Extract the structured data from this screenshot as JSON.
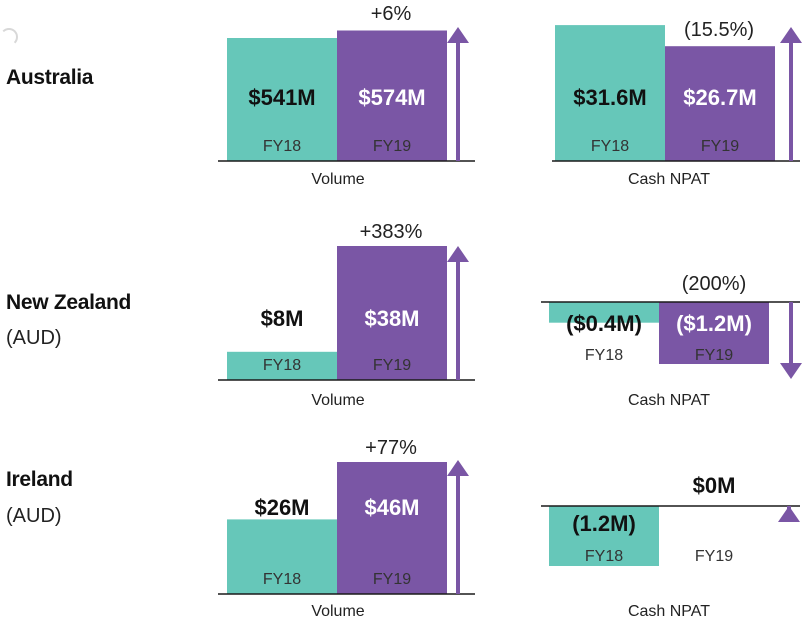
{
  "colors": {
    "fy18": "#66c7b9",
    "fy19": "#7a56a5",
    "arrow": "#7a56a5",
    "axis": "#1a1a1a",
    "white": "#ffffff",
    "dark": "#111111"
  },
  "regions": [
    {
      "name": "Australia",
      "sub": ""
    },
    {
      "name": "New Zealand",
      "sub": "(AUD)"
    },
    {
      "name": "Ireland",
      "sub": "(AUD)"
    }
  ],
  "chart_data": [
    {
      "type": "bar",
      "region": "Australia",
      "metric": "Volume",
      "xlabel": "Volume",
      "unit": "$M",
      "categories": [
        "FY18",
        "FY19"
      ],
      "values": [
        541,
        574
      ],
      "value_labels": [
        "$541M",
        "$574M"
      ],
      "change_label": "+6%",
      "change_direction": "up"
    },
    {
      "type": "bar",
      "region": "Australia",
      "metric": "Cash NPAT",
      "xlabel": "Cash NPAT",
      "unit": "$M",
      "categories": [
        "FY18",
        "FY19"
      ],
      "values": [
        31.6,
        26.7
      ],
      "value_labels": [
        "$31.6M",
        "$26.7M"
      ],
      "change_label": "(15.5%)",
      "change_direction": "up"
    },
    {
      "type": "bar",
      "region": "New Zealand",
      "metric": "Volume",
      "xlabel": "Volume",
      "unit": "$M",
      "categories": [
        "FY18",
        "FY19"
      ],
      "values": [
        8,
        38
      ],
      "value_labels": [
        "$8M",
        "$38M"
      ],
      "change_label": "+383%",
      "change_direction": "up"
    },
    {
      "type": "bar",
      "region": "New Zealand",
      "metric": "Cash NPAT",
      "xlabel": "Cash NPAT",
      "unit": "$M",
      "categories": [
        "FY18",
        "FY19"
      ],
      "values": [
        -0.4,
        -1.2
      ],
      "value_labels": [
        "($0.4M)",
        "($1.2M)"
      ],
      "change_label": "(200%)",
      "change_direction": "down"
    },
    {
      "type": "bar",
      "region": "Ireland",
      "metric": "Volume",
      "xlabel": "Volume",
      "unit": "$M",
      "categories": [
        "FY18",
        "FY19"
      ],
      "values": [
        26,
        46
      ],
      "value_labels": [
        "$26M",
        "$46M"
      ],
      "change_label": "+77%",
      "change_direction": "up"
    },
    {
      "type": "bar",
      "region": "Ireland",
      "metric": "Cash NPAT",
      "xlabel": "Cash NPAT",
      "unit": "$M",
      "categories": [
        "FY18",
        "FY19"
      ],
      "values": [
        -1.2,
        0
      ],
      "value_labels": [
        "(1.2M)",
        "$0M"
      ],
      "change_label": "",
      "change_direction": "up"
    }
  ]
}
